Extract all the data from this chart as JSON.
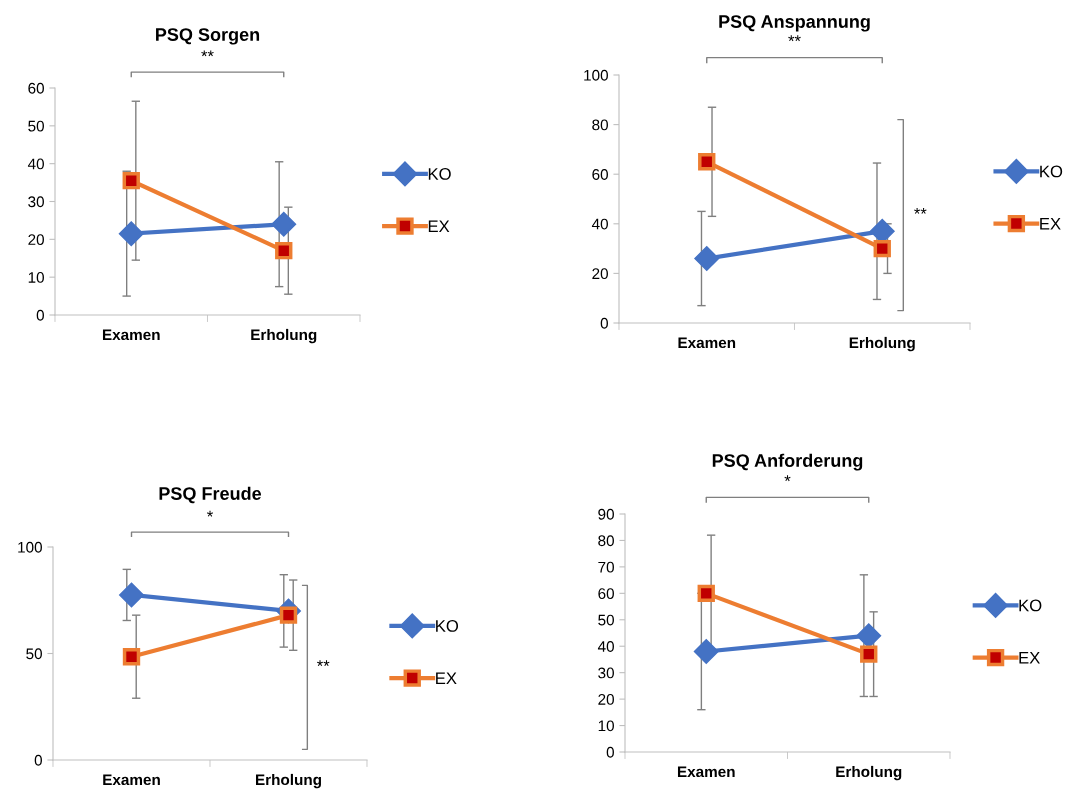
{
  "chart_data": [
    {
      "type": "line",
      "title": "PSQ Sorgen",
      "categories": [
        "Examen",
        "Erholung"
      ],
      "ylim": [
        0,
        60
      ],
      "yticks": [
        0,
        10,
        20,
        30,
        40,
        50,
        60
      ],
      "legend": "right",
      "grid": false,
      "annotations": [
        "**"
      ],
      "series": [
        {
          "name": "KO",
          "color": "#4472c4",
          "marker": "diamond",
          "values": [
            21.5,
            24
          ],
          "errors": [
            16.5,
            16.5
          ]
        },
        {
          "name": "EX",
          "color": "#ed7d31",
          "marker": "square",
          "values": [
            35.5,
            17
          ],
          "errors": [
            21,
            11.5
          ]
        }
      ]
    },
    {
      "type": "line",
      "title": "PSQ Anspannung",
      "categories": [
        "Examen",
        "Erholung"
      ],
      "ylim": [
        0,
        100
      ],
      "yticks": [
        0,
        20,
        40,
        60,
        80,
        100
      ],
      "legend": "right",
      "grid": false,
      "annotations": [
        "**",
        "**"
      ],
      "series": [
        {
          "name": "KO",
          "color": "#4472c4",
          "marker": "diamond",
          "values": [
            26,
            37
          ],
          "errors": [
            19,
            27.5
          ]
        },
        {
          "name": "EX",
          "color": "#ed7d31",
          "marker": "square",
          "values": [
            65,
            30
          ],
          "errors": [
            22,
            10
          ]
        }
      ]
    },
    {
      "type": "line",
      "title": "PSQ Freude",
      "categories": [
        "Examen",
        "Erholung"
      ],
      "ylim": [
        0,
        100
      ],
      "yticks": [
        0,
        50,
        100
      ],
      "legend": "right",
      "grid": false,
      "annotations": [
        "*",
        "**"
      ],
      "series": [
        {
          "name": "KO",
          "color": "#4472c4",
          "marker": "diamond",
          "values": [
            77.5,
            70
          ],
          "errors": [
            12,
            17
          ]
        },
        {
          "name": "EX",
          "color": "#ed7d31",
          "marker": "square",
          "values": [
            48.5,
            68
          ],
          "errors": [
            19.5,
            16.5
          ]
        }
      ]
    },
    {
      "type": "line",
      "title": "PSQ Anforderung",
      "categories": [
        "Examen",
        "Erholung"
      ],
      "ylim": [
        0,
        90
      ],
      "yticks": [
        0,
        10,
        20,
        30,
        40,
        50,
        60,
        70,
        80,
        90
      ],
      "legend": "right",
      "grid": false,
      "annotations": [
        "*"
      ],
      "series": [
        {
          "name": "KO",
          "color": "#4472c4",
          "marker": "diamond",
          "values": [
            38,
            44
          ],
          "errors": [
            22,
            23
          ]
        },
        {
          "name": "EX",
          "color": "#ed7d31",
          "marker": "square",
          "values": [
            60,
            37
          ],
          "errors": [
            22,
            16
          ]
        }
      ]
    }
  ]
}
